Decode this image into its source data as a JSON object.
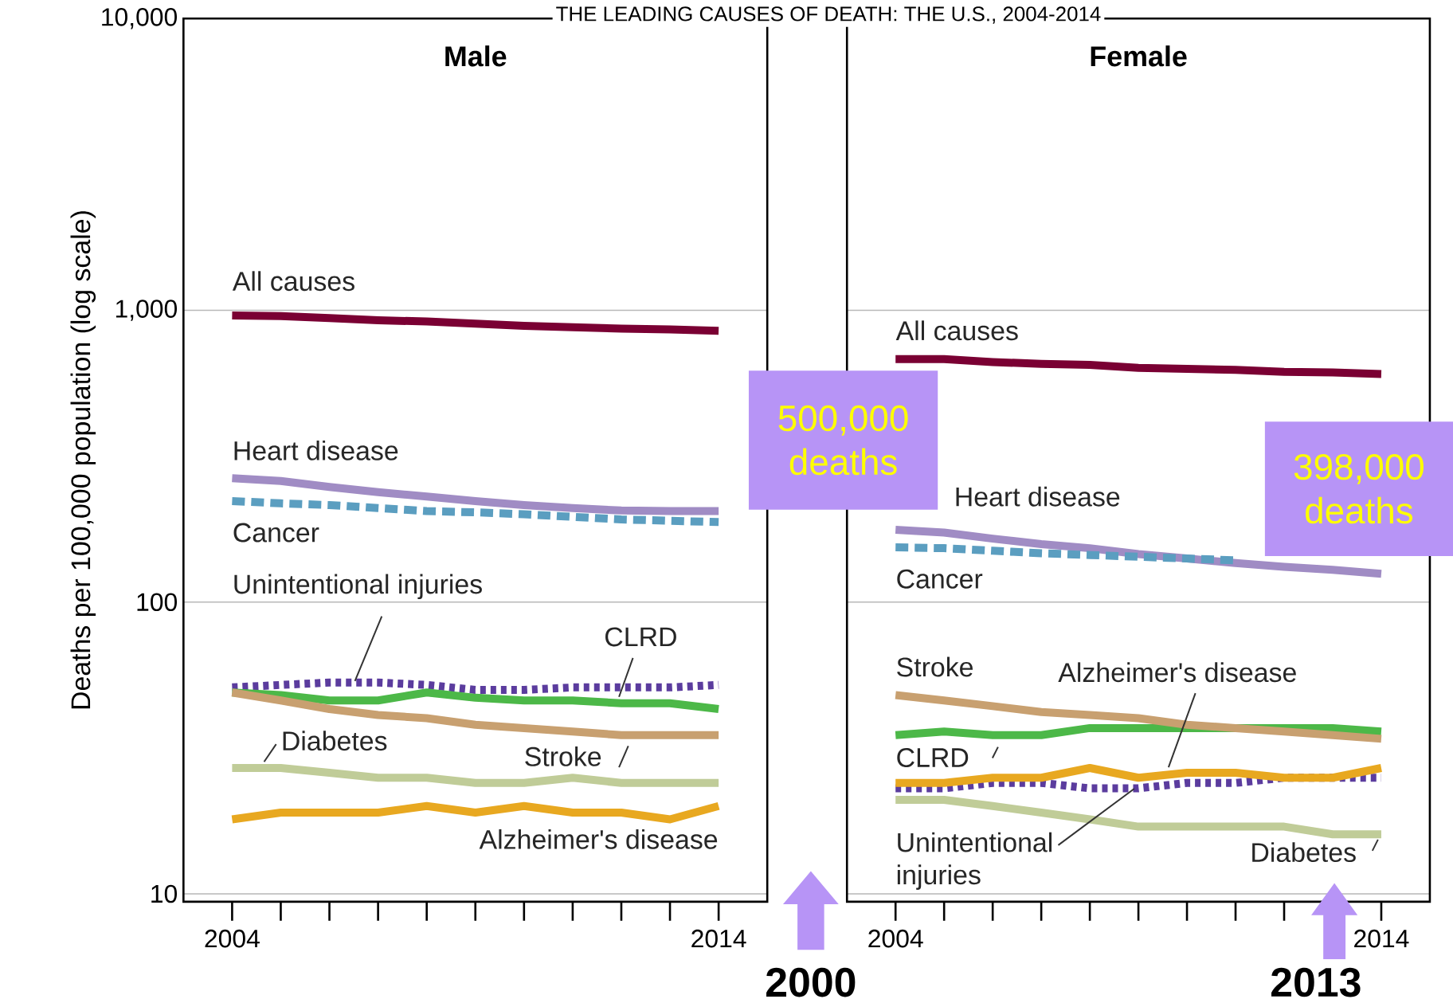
{
  "chart_data": [
    {
      "type": "line",
      "title": "THE LEADING CAUSES OF DEATH: THE U.S., 2004-2014",
      "subtitle": "Male",
      "ylabel": "Deaths per 100,000 population (log scale)",
      "x": [
        2004,
        2005,
        2006,
        2007,
        2008,
        2009,
        2010,
        2011,
        2012,
        2013,
        2014
      ],
      "xlim": [
        2003,
        2015
      ],
      "xticks": [
        2004,
        2014
      ],
      "ylim": [
        9.4,
        10000
      ],
      "yticks": [
        10,
        100,
        {
          "value": 1000,
          "label": "1,000"
        },
        {
          "value": 10000,
          "label": "10,000"
        }
      ],
      "log": "y",
      "grid": "y",
      "annotations": [
        "500,000 deaths",
        "2000"
      ],
      "series": [
        {
          "name": "All causes",
          "color": "#7a0033",
          "line_style": "solid",
          "values": [
            960,
            955,
            940,
            925,
            915,
            900,
            885,
            875,
            865,
            860,
            850
          ]
        },
        {
          "name": "Heart disease",
          "color": "#a08cc4",
          "line_style": "solid",
          "values": [
            266,
            260,
            248,
            238,
            230,
            222,
            215,
            210,
            206,
            205,
            205
          ]
        },
        {
          "name": "Cancer",
          "color": "#5b9ec0",
          "line_style": "dashed",
          "values": [
            222,
            218,
            215,
            210,
            205,
            203,
            200,
            196,
            192,
            190,
            188
          ]
        },
        {
          "name": "Unintentional injuries",
          "color": "#5b3c9e",
          "line_style": "dotted",
          "values": [
            51,
            52,
            53,
            53,
            52,
            50,
            50,
            51,
            51,
            51,
            52
          ]
        },
        {
          "name": "CLRD",
          "color": "#4cb848",
          "line_style": "solid",
          "values": [
            49,
            48,
            46,
            46,
            49,
            47,
            46,
            46,
            45,
            45,
            43
          ]
        },
        {
          "name": "Stroke",
          "color": "#c8a070",
          "line_style": "solid",
          "values": [
            49,
            46,
            43,
            41,
            40,
            38,
            37,
            36,
            35,
            35,
            35
          ]
        },
        {
          "name": "Diabetes",
          "color": "#c0cc98",
          "line_style": "solid",
          "values": [
            27,
            27,
            26,
            25,
            25,
            24,
            24,
            25,
            24,
            24,
            24
          ]
        },
        {
          "name": "Alzheimer's disease",
          "color": "#e8a820",
          "line_style": "solid",
          "values": [
            18,
            19,
            19,
            19,
            20,
            19,
            20,
            19,
            19,
            18,
            20
          ]
        }
      ]
    },
    {
      "type": "line",
      "subtitle": "Female",
      "x": [
        2004,
        2005,
        2006,
        2007,
        2008,
        2009,
        2010,
        2011,
        2012,
        2013,
        2014
      ],
      "xlim": [
        2003,
        2015
      ],
      "xticks": [
        2004,
        2014
      ],
      "ylim": [
        9.4,
        10000
      ],
      "log": "y",
      "grid": "y",
      "tick_labels": "x",
      "yticks": [
        10,
        100,
        1000,
        10000
      ],
      "annotations": [
        "398,000 deaths",
        "2013"
      ],
      "series": [
        {
          "name": "All causes",
          "color": "#7a0033",
          "line_style": "solid",
          "values": [
            680,
            680,
            665,
            655,
            650,
            635,
            630,
            625,
            615,
            612,
            605
          ]
        },
        {
          "name": "Heart disease",
          "color": "#a08cc4",
          "line_style": "solid",
          "values": [
            177,
            173,
            165,
            158,
            153,
            146,
            141,
            136,
            132,
            129,
            125
          ]
        },
        {
          "name": "Cancer",
          "color": "#5b9ec0",
          "line_style": "dashed",
          "values": [
            154,
            153,
            150,
            147,
            145,
            143,
            141,
            139,
            null,
            null,
            null
          ]
        },
        {
          "name": "Unintentional injuries",
          "color": "#5b3c9e",
          "line_style": "dotted",
          "values": [
            23,
            23,
            24,
            24,
            23,
            23,
            24,
            24,
            25,
            25,
            25
          ]
        },
        {
          "name": "CLRD",
          "color": "#4cb848",
          "line_style": "solid",
          "values": [
            35,
            36,
            35,
            35,
            37,
            37,
            37,
            37,
            37,
            37,
            36
          ]
        },
        {
          "name": "Stroke",
          "color": "#c8a070",
          "line_style": "solid",
          "values": [
            48,
            46,
            44,
            42,
            41,
            40,
            38,
            37,
            36,
            35,
            34
          ]
        },
        {
          "name": "Diabetes",
          "color": "#c0cc98",
          "line_style": "solid",
          "values": [
            21,
            21,
            20,
            19,
            18,
            17,
            17,
            17,
            17,
            16,
            16
          ]
        },
        {
          "name": "Alzheimer's disease",
          "color": "#e8a820",
          "line_style": "solid",
          "values": [
            24,
            24,
            25,
            25,
            27,
            25,
            26,
            26,
            25,
            25,
            27
          ]
        }
      ]
    }
  ]
}
